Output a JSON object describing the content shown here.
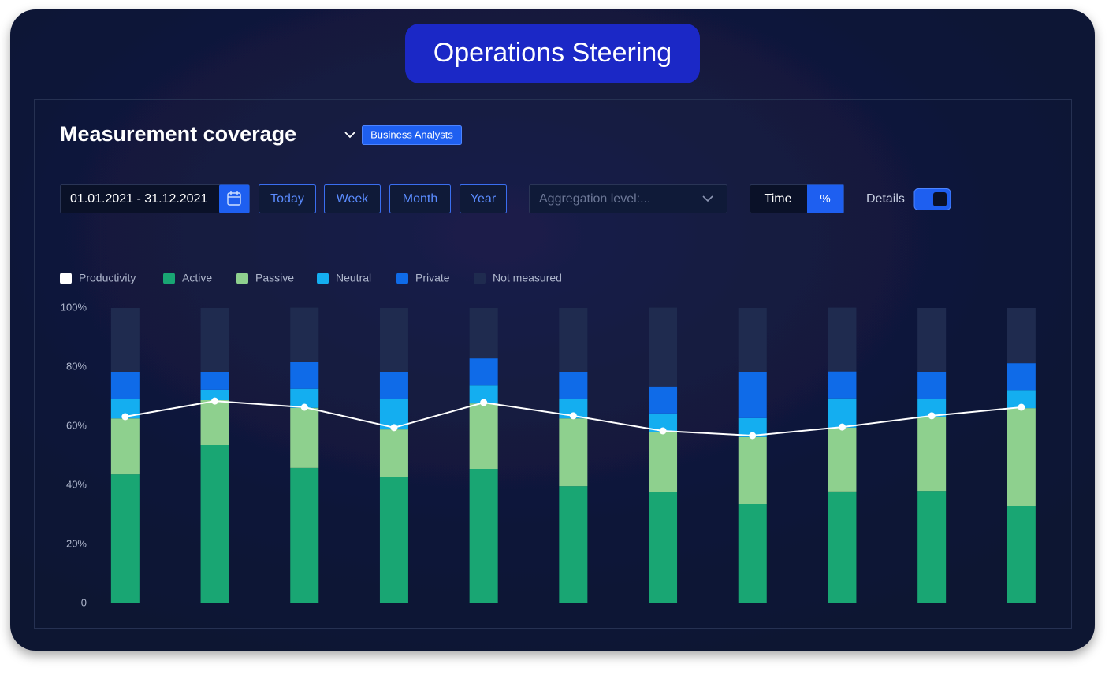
{
  "header": {
    "title": "Operations Steering"
  },
  "panel": {
    "title": "Measurement coverage",
    "badge": "Business Analysts"
  },
  "controls": {
    "date_range": "01.01.2021 - 31.12.2021",
    "periods": [
      "Today",
      "Week",
      "Month",
      "Year"
    ],
    "aggregation": "Aggregation level:...",
    "modes": [
      "Time",
      "%"
    ],
    "details": "Details"
  },
  "chart_data": {
    "type": "bar",
    "stacked": true,
    "categories": [
      null,
      null,
      null,
      null,
      null,
      null,
      null,
      null,
      null,
      null,
      null
    ],
    "ylim": [
      0,
      100
    ],
    "yticks": [
      0,
      {
        "value": 20,
        "label": "20%"
      },
      {
        "value": 40,
        "label": "40%"
      },
      {
        "value": 60,
        "label": "60%"
      },
      {
        "value": 80,
        "label": "80%"
      },
      {
        "value": 100,
        "label": "100%"
      }
    ],
    "grid": false,
    "legend": "top-left",
    "series": [
      {
        "name": "Productivity",
        "type": "line",
        "color": "#ffffff",
        "values": [
          63.2,
          68.5,
          66.4,
          59.5,
          68.0,
          63.5,
          58.4,
          56.8,
          59.7,
          63.5,
          66.4
        ]
      },
      {
        "name": "Active",
        "color": "#19a673",
        "values": [
          43.7,
          53.6,
          45.9,
          42.9,
          45.6,
          39.7,
          37.6,
          33.6,
          37.9,
          38.1,
          32.8
        ]
      },
      {
        "name": "Passive",
        "color": "#8ed08e",
        "values": [
          18.9,
          15.2,
          20.3,
          16.0,
          22.1,
          22.9,
          20.3,
          22.7,
          21.6,
          25.1,
          33.3
        ]
      },
      {
        "name": "Neutral",
        "color": "#14aef0",
        "values": [
          6.7,
          3.5,
          6.4,
          10.4,
          6.1,
          6.7,
          6.4,
          6.4,
          9.9,
          6.1,
          6.1
        ]
      },
      {
        "name": "Private",
        "color": "#0f6be8",
        "values": [
          9.1,
          6.1,
          9.1,
          9.1,
          9.1,
          9.1,
          9.1,
          15.7,
          9.1,
          9.1,
          9.1
        ]
      },
      {
        "name": "Not measured",
        "color": "#1f2b4f",
        "values": [
          21.6,
          21.6,
          18.4,
          21.6,
          17.1,
          21.6,
          26.7,
          21.6,
          21.6,
          21.6,
          18.7
        ]
      }
    ]
  }
}
